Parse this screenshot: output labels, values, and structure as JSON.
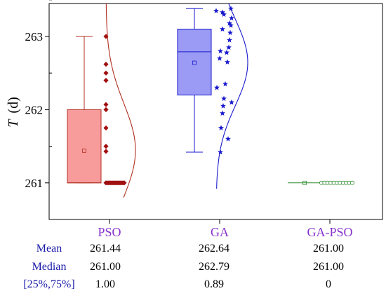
{
  "chart_data": {
    "type": "box",
    "ylabel_italic": "T",
    "ylabel_unit": "(d)",
    "ylim": [
      260.5,
      263.45
    ],
    "yticks": [
      261,
      262,
      263
    ],
    "categories": [
      "PSO",
      "GA",
      "GA-PSO"
    ],
    "series": [
      {
        "name": "PSO",
        "box": {
          "min": 261.0,
          "q1": 261.0,
          "median": 261.0,
          "q3": 262.0,
          "max": 263.0,
          "mean": 261.44
        },
        "points": [
          263.0,
          262.62,
          262.5,
          262.4,
          262.07,
          262.0,
          261.75,
          261.5,
          261.43,
          261.0,
          261.0,
          261.0,
          261.0,
          261.0,
          261.0,
          261.0,
          261.0,
          261.0,
          261.0,
          261.0,
          261.0,
          261.0,
          261.0
        ],
        "curve_range": [
          260.8,
          263.45
        ],
        "fill": "#f79b9b",
        "stroke": "#b03020",
        "point_color": "#a01010",
        "marker": "diamond"
      },
      {
        "name": "GA",
        "box": {
          "min": 261.42,
          "q1": 262.2,
          "median": 262.79,
          "q3": 263.1,
          "max": 263.38,
          "mean": 262.64
        },
        "points": [
          263.38,
          263.35,
          263.33,
          263.3,
          263.25,
          263.18,
          263.15,
          263.1,
          263.05,
          262.95,
          262.85,
          262.8,
          262.78,
          262.7,
          262.65,
          262.35,
          262.3,
          262.15,
          262.1,
          262.05,
          261.95,
          261.75,
          261.6,
          261.42
        ],
        "curve_range": [
          260.92,
          263.45
        ],
        "fill": "#9b9bf5",
        "stroke": "#1a1acc",
        "point_color": "#1a1acc",
        "marker": "star"
      },
      {
        "name": "GA-PSO",
        "box": {
          "min": 261.0,
          "q1": 261.0,
          "median": 261.0,
          "q3": 261.0,
          "max": 261.0,
          "mean": 261.0
        },
        "points": [
          261.0,
          261.0,
          261.0,
          261.0,
          261.0,
          261.0,
          261.0,
          261.0,
          261.0,
          261.0,
          261.0
        ],
        "fill": "#7fcf7f",
        "stroke": "#2e8b2e",
        "point_color": "#2e8b2e",
        "marker": "circle"
      }
    ]
  },
  "label_color": "#8833cc",
  "stats_table": {
    "rows": [
      {
        "label": "Mean",
        "values": [
          "261.44",
          "262.64",
          "261.00"
        ]
      },
      {
        "label": "Median",
        "values": [
          "261.00",
          "262.79",
          "261.00"
        ]
      },
      {
        "label": "[25%,75%]",
        "values": [
          "1.00",
          "0.89",
          "0"
        ]
      }
    ]
  }
}
